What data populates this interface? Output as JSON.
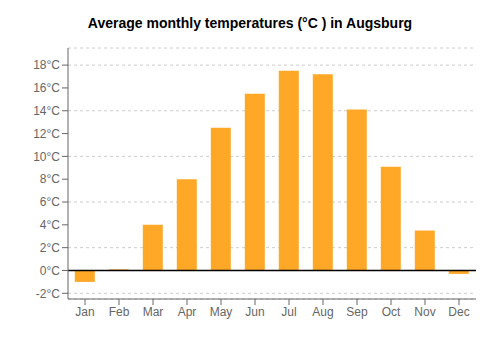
{
  "chart_data": {
    "type": "bar",
    "title": "Average monthly temperatures (°C ) in Augsburg",
    "categories": [
      "Jan",
      "Feb",
      "Mar",
      "Apr",
      "May",
      "Jun",
      "Jul",
      "Aug",
      "Sep",
      "Oct",
      "Nov",
      "Dec"
    ],
    "values": [
      -1.0,
      0.1,
      4.0,
      8.0,
      12.5,
      15.5,
      17.5,
      17.2,
      14.1,
      9.1,
      3.5,
      -0.3
    ],
    "color": "#FFA726",
    "ylim": [
      -2.5,
      19.5
    ],
    "yticks": [
      {
        "value": -2,
        "label": "-2°C"
      },
      {
        "value": 0,
        "label": "0°C"
      },
      {
        "value": 2,
        "label": "2°C"
      },
      {
        "value": 4,
        "label": "4°C"
      },
      {
        "value": 6,
        "label": "6°C"
      },
      {
        "value": 8,
        "label": "8°C"
      },
      {
        "value": 10,
        "label": "10°C"
      },
      {
        "value": 12,
        "label": "12°C"
      },
      {
        "value": 14,
        "label": "14°C"
      },
      {
        "value": 16,
        "label": "16°C"
      },
      {
        "value": 18,
        "label": "18°C"
      }
    ],
    "grid": true
  }
}
